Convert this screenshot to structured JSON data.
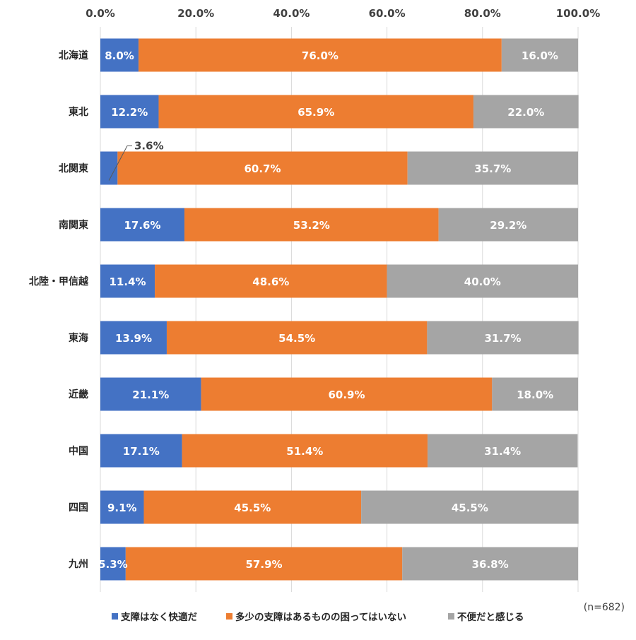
{
  "chart_data": {
    "type": "bar",
    "orientation": "horizontal",
    "stacked": true,
    "categories": [
      "北海道",
      "東北",
      "北関東",
      "南関東",
      "北陸・甲信越",
      "東海",
      "近畿",
      "中国",
      "四国",
      "九州"
    ],
    "series": [
      {
        "name": "支障はなく快適だ",
        "color": "#4472C4",
        "values": [
          8.0,
          12.2,
          3.6,
          17.6,
          11.4,
          13.9,
          21.1,
          17.1,
          9.1,
          5.3
        ],
        "labels": [
          "8.0%",
          "12.2%",
          "3.6%",
          "17.6%",
          "11.4%",
          "13.9%",
          "21.1%",
          "17.1%",
          "9.1%",
          "5.3%"
        ]
      },
      {
        "name": "多少の支障はあるものの困ってはいない",
        "color": "#ED7D31",
        "values": [
          76.0,
          65.9,
          60.7,
          53.2,
          48.6,
          54.5,
          60.9,
          51.4,
          45.5,
          57.9
        ],
        "labels": [
          "76.0%",
          "65.9%",
          "60.7%",
          "53.2%",
          "48.6%",
          "54.5%",
          "60.9%",
          "51.4%",
          "45.5%",
          "57.9%"
        ]
      },
      {
        "name": "不便だと感じる",
        "color": "#A5A5A5",
        "values": [
          16.0,
          22.0,
          35.7,
          29.2,
          40.0,
          31.7,
          18.0,
          31.4,
          45.5,
          36.8
        ],
        "labels": [
          "16.0%",
          "22.0%",
          "35.7%",
          "29.2%",
          "40.0%",
          "31.7%",
          "18.0%",
          "31.4%",
          "45.5%",
          "36.8%"
        ]
      }
    ],
    "xlim": [
      0,
      100
    ],
    "x_ticks": [
      "0.0%",
      "20.0%",
      "40.0%",
      "60.0%",
      "80.0%",
      "100.0%"
    ],
    "grid": true,
    "axis_position": "top",
    "legend_position": "bottom",
    "note": "(n=682)"
  }
}
